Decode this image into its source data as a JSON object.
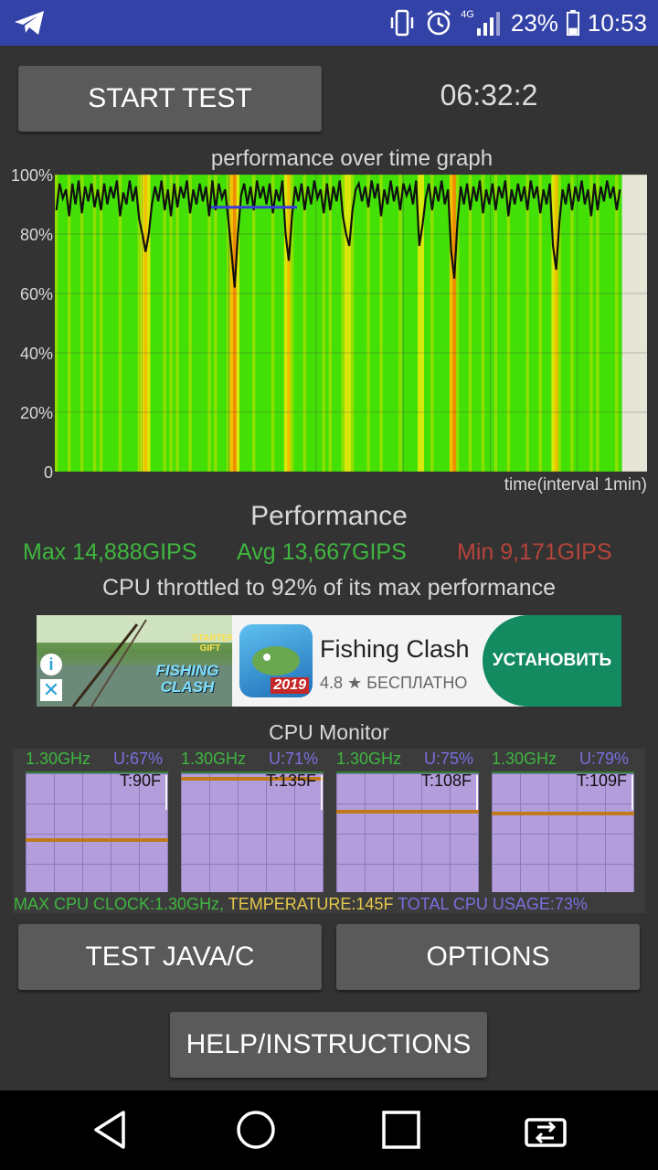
{
  "status_bar": {
    "app_icon": "telegram-icon",
    "network": "4G",
    "battery": "23%",
    "time": "10:53"
  },
  "top": {
    "start_button": "START TEST",
    "timer": "06:32:2"
  },
  "graph": {
    "title": "performance over time graph",
    "xlabel": "time(interval 1min)",
    "y_ticks": [
      "100%",
      "80%",
      "60%",
      "40%",
      "20%",
      "0"
    ]
  },
  "chart_data": {
    "type": "line",
    "title": "performance over time graph",
    "xlabel": "time(interval 1min)",
    "ylabel": "",
    "ylim": [
      0,
      100
    ],
    "y_ticks": [
      "0",
      "20%",
      "40%",
      "60%",
      "80%",
      "100%"
    ],
    "grid": true,
    "series": [
      {
        "values": [
          88,
          97,
          92,
          95,
          86,
          97,
          90,
          98,
          87,
          96,
          91,
          97,
          89,
          95,
          88,
          97,
          90,
          96,
          92,
          98,
          86,
          94,
          90,
          98,
          91,
          96,
          85,
          80,
          74,
          80,
          90,
          96,
          91,
          98,
          88,
          95,
          86,
          97,
          89,
          96,
          92,
          98,
          87,
          95,
          90,
          97,
          91,
          96,
          86,
          98,
          88,
          97,
          92,
          95,
          85,
          74,
          62,
          80,
          93,
          97,
          90,
          96,
          88,
          98,
          92,
          96,
          90,
          97,
          87,
          95,
          91,
          98,
          80,
          71,
          86,
          96,
          91,
          97,
          88,
          96,
          90,
          98,
          92,
          95,
          87,
          97,
          88,
          96,
          91,
          98,
          86,
          80,
          76,
          88,
          95,
          97,
          91,
          96,
          89,
          98,
          92,
          97,
          86,
          95,
          90,
          98,
          91,
          96,
          88,
          97,
          93,
          96,
          90,
          98,
          76,
          83,
          92,
          97,
          88,
          96,
          91,
          98,
          90,
          95,
          74,
          65,
          84,
          96,
          90,
          97,
          88,
          96,
          91,
          98,
          87,
          95,
          90,
          97,
          88,
          96,
          92,
          98,
          86,
          95,
          90,
          97,
          91,
          96,
          88,
          98,
          92,
          96,
          87,
          95,
          90,
          97,
          76,
          68,
          84,
          95,
          90,
          97,
          88,
          96,
          91,
          98,
          90,
          95,
          86,
          97,
          88,
          96,
          91,
          98,
          92,
          96,
          88,
          95
        ]
      }
    ],
    "ref_line": 89
  },
  "performance": {
    "title": "Performance",
    "max": "Max 14,888GIPS",
    "avg": "Avg 13,667GIPS",
    "min": "Min 9,171GIPS",
    "throttle": "CPU throttled to 92% of its max performance"
  },
  "ad": {
    "title": "Fishing Clash",
    "rating": "4.8 ★ БЕСПЛАТНО",
    "install": "УСТАНОВИТЬ",
    "img_badge": "STARTER GIFT",
    "img_logo": "FISHING CLASH",
    "icon_year": "2019",
    "info_glyph": "i",
    "close_glyph": "✕"
  },
  "cpu_monitor": {
    "title": "CPU Monitor",
    "cores": [
      {
        "freq": "1.30GHz",
        "usage": "U:67%",
        "temp": "T:90F",
        "usage_level": 0.46
      },
      {
        "freq": "1.30GHz",
        "usage": "U:71%",
        "temp": "T:135F",
        "usage_level": 0.97
      },
      {
        "freq": "1.30GHz",
        "usage": "U:75%",
        "temp": "T:108F",
        "usage_level": 0.7
      },
      {
        "freq": "1.30GHz",
        "usage": "U:79%",
        "temp": "T:109F",
        "usage_level": 0.68
      }
    ],
    "max_clock": "MAX CPU CLOCK:1.30GHz,",
    "temperature": "TEMPERATURE:145F",
    "total_usage": "TOTAL CPU USAGE:73%"
  },
  "buttons": {
    "test_java": "TEST JAVA/C",
    "options": "OPTIONS",
    "help": "HELP/INSTRUCTIONS"
  },
  "colors": {
    "status_bar": "#3342a6",
    "green_text": "#3fb63f",
    "avg_text": "#3fb63f",
    "min_text": "#b5443a",
    "graph_line": "#111111",
    "ref_line": "#3a3ae0",
    "core_bg": "#b39ddb",
    "core_line": "#c07a1a",
    "usage_text": "#7a6fe0",
    "temp_text": "#e5c84a"
  }
}
